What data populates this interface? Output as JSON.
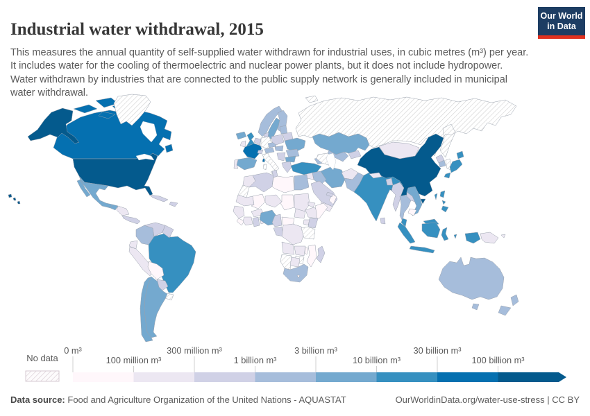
{
  "header": {
    "title": "Industrial water withdrawal, 2015",
    "subtitle": "This measures the annual quantity of self-supplied water withdrawn for industrial uses, in cubic metres (m³) per year. It includes water for the cooling of thermoelectric and nuclear power plants, but it does not include hydropower. Water withdrawn by industries that are connected to the public supply network is generally included in municipal water withdrawal.",
    "logo": {
      "line1": "Our World",
      "line2": "in Data",
      "bg_color": "#1d3d63",
      "accent_color": "#e0311f"
    }
  },
  "legend": {
    "no_data_label": "No data",
    "tick_labels": [
      "0 m³",
      "100 million m³",
      "300 million m³",
      "1 billion m³",
      "3 billion m³",
      "10 billion m³",
      "30 billion m³",
      "100 billion m³"
    ],
    "colors": [
      "#fff7fb",
      "#ece7f2",
      "#d0d1e6",
      "#a6bddb",
      "#74a9cf",
      "#3690c0",
      "#0570b0",
      "#045a8d"
    ],
    "label_color": "#5a5a5a",
    "tick_line_color": "#cfcfcf"
  },
  "footer": {
    "source_label": "Data source:",
    "source_text": "Food and Agriculture Organization of the United Nations - AQUASTAT",
    "link": "OurWorldinData.org/water-use-stress",
    "separator": "|",
    "license": "CC BY"
  },
  "chart_data": {
    "type": "choropleth",
    "title": "Industrial water withdrawal, 2015",
    "unit": "cubic metres (m³) per year",
    "bin_thresholds": [
      "0 m³",
      "100 million m³",
      "300 million m³",
      "1 billion m³",
      "3 billion m³",
      "10 billion m³",
      "30 billion m³",
      "100 billion m³"
    ],
    "bin_labels": [
      "0–100 million m³",
      "100–300 million m³",
      "300 million–1 billion m³",
      "1–3 billion m³",
      "3–10 billion m³",
      "10–30 billion m³",
      "30–100 billion m³",
      "over 100 billion m³"
    ],
    "bin_colors": [
      "#fff7fb",
      "#ece7f2",
      "#d0d1e6",
      "#a6bddb",
      "#74a9cf",
      "#3690c0",
      "#0570b0",
      "#045a8d"
    ],
    "no_data": {
      "label": "No data",
      "style": "hatched"
    },
    "country_bins": {
      "Russia": -1,
      "Greenland": -1,
      "Germany": -1,
      "Italy": -1,
      "Uruguay": -1,
      "Tanzania": -1,
      "Zimbabwe": -1,
      "Namibia": -1,
      "Turkmenistan": -1,
      "Western Sahara": -1,
      "United States": 7,
      "China": 7,
      "Canada": 6,
      "France": 6,
      "Brazil": 5,
      "India": 5,
      "United Kingdom": 5,
      "Japan": 5,
      "Turkey": 5,
      "Indonesia": 5,
      "Malaysia": 5,
      "Philippines": 5,
      "Taiwan": 5,
      "Mexico": 4,
      "Guatemala": 4,
      "Argentina": 4,
      "Chile": 4,
      "Spain": 4,
      "Sweden": 4,
      "Iceland": 4,
      "Kazakhstan": 4,
      "Ukraine": 4,
      "Iran": 4,
      "Nigeria": 4,
      "Bulgaria": 4,
      "Vietnam": 4,
      "Norway": 3,
      "Finland": 3,
      "Austria": 3,
      "Czechia": 3,
      "Hungary": 3,
      "Romania": 3,
      "Baltic states": 3,
      "Uzbekistan": 3,
      "Egypt": 3,
      "South Africa": 3,
      "Colombia": 3,
      "Pakistan": 3,
      "Thailand": 3,
      "South Korea": 3,
      "Iraq": 3,
      "Australia": 3,
      "New Zealand": 3,
      "Georgia": 3,
      "Venezuela": 2,
      "Cuba": 2,
      "Dominican Republic": 2,
      "Guyana": 2,
      "Paraguay": 2,
      "Panama": 2,
      "Saudi Arabia": 2,
      "United Arab Emirates": 2,
      "Myanmar": 2,
      "Bangladesh": 2,
      "Sri Lanka": 2,
      "North Korea": 2,
      "Laos": 2,
      "Algeria": 2,
      "Tunisia": 2,
      "Greece": 2,
      "Serbia": 2,
      "Belarus": 2,
      "Switzerland": 2,
      "Denmark": 2,
      "Netherlands": 2,
      "Poland": 2,
      "Gabon": 2,
      "Ghana": 2,
      "Kenya": 2,
      "Madagascar": 2,
      "Cameroon": 2,
      "Kyrgyzstan": 2,
      "Ireland": 1,
      "Portugal": 1,
      "Ecuador": 1,
      "Peru": 1,
      "Honduras": 1,
      "Mongolia": 1,
      "Afghanistan": 1,
      "Nepal": 1,
      "Syria": 1,
      "Jordan": 1,
      "Yemen": 1,
      "Morocco": 1,
      "Mauritania": 1,
      "Niger": 1,
      "Sudan": 1,
      "South Sudan": 1,
      "Eritrea": 1,
      "Ethiopia": 1,
      "Senegal": 1,
      "Ivory Coast": 1,
      "Benin": 1,
      "Burkina Faso": 1,
      "DR Congo": 1,
      "Uganda": 1,
      "Angola": 1,
      "Zambia": 1,
      "Botswana": 1,
      "Papua New Guinea": 1,
      "Bolivia": 0,
      "Libya": 0,
      "Mali": 0,
      "Chad": 0,
      "Somalia": 0,
      "Sierra Leone": 0,
      "Central African Republic": 0,
      "Mozambique": 0,
      "Malawi": 0,
      "Lesotho": 0,
      "Cambodia": 0,
      "Oman": 0
    }
  }
}
